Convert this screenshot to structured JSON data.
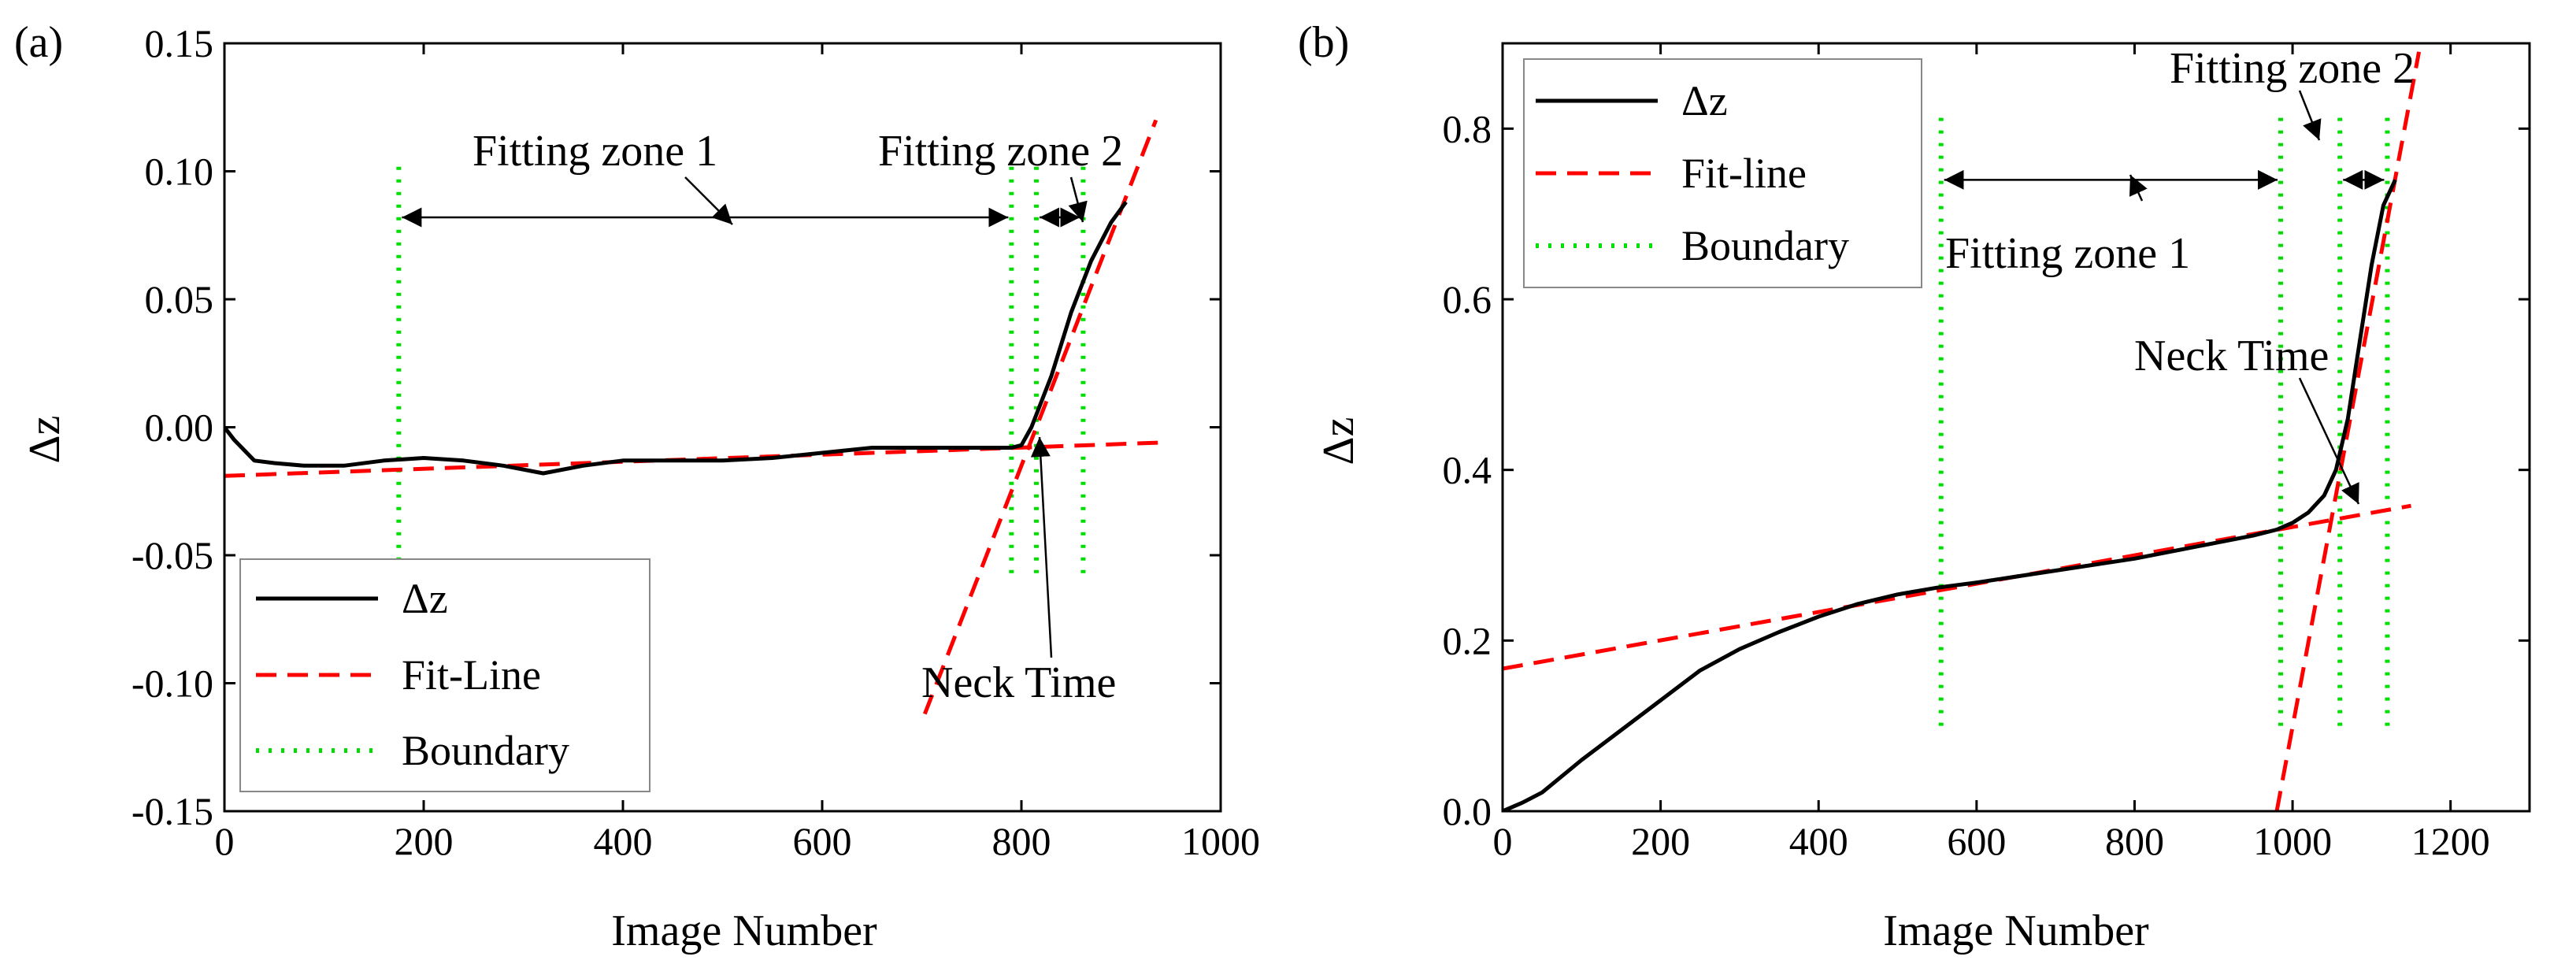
{
  "chart_data": [
    {
      "type": "line",
      "panel_label": "(a)",
      "xlabel": "Image Number",
      "ylabel": "Δz",
      "xlim": [
        0,
        1000
      ],
      "ylim": [
        -0.15,
        0.15
      ],
      "x_ticks": [
        0,
        200,
        400,
        600,
        800,
        1000
      ],
      "y_ticks": [
        -0.15,
        -0.1,
        -0.05,
        0.0,
        0.05,
        0.1,
        0.15
      ],
      "x_tick_labels": [
        "0",
        "200",
        "400",
        "600",
        "800",
        "1000"
      ],
      "y_tick_labels": [
        "-0.15",
        "-0.10",
        "-0.05",
        "0.00",
        "0.05",
        "0.10",
        "0.15"
      ],
      "legend_position": "bottom-left",
      "legend": [
        "Δz",
        "Fit-Line",
        "Boundary"
      ],
      "series": [
        {
          "name": "Δz",
          "style": "solid",
          "color": "#000000",
          "x": [
            0,
            10,
            30,
            50,
            80,
            120,
            160,
            200,
            240,
            280,
            320,
            360,
            400,
            450,
            500,
            550,
            600,
            650,
            700,
            750,
            790,
            800,
            810,
            830,
            850,
            870,
            890,
            905
          ],
          "y": [
            0.0,
            -0.005,
            -0.013,
            -0.014,
            -0.015,
            -0.015,
            -0.013,
            -0.012,
            -0.013,
            -0.015,
            -0.018,
            -0.015,
            -0.013,
            -0.013,
            -0.013,
            -0.012,
            -0.01,
            -0.008,
            -0.008,
            -0.008,
            -0.008,
            -0.007,
            0.0,
            0.02,
            0.045,
            0.065,
            0.08,
            0.088
          ]
        },
        {
          "name": "Fit-Line",
          "style": "dashed",
          "color": "#ff0000",
          "segments": [
            {
              "x": [
                0,
                940
              ],
              "y": [
                -0.019,
                -0.006
              ]
            },
            {
              "x": [
                703,
                935
              ],
              "y": [
                -0.112,
                0.12
              ]
            }
          ]
        },
        {
          "name": "Boundary",
          "style": "dotted",
          "color": "#00dd00",
          "vertical_x": [
            175,
            790,
            815,
            862
          ],
          "y_range": [
            -0.057,
            0.103
          ]
        }
      ],
      "annotations": [
        {
          "text": "Fitting zone 1",
          "x": 430,
          "y": 0.112
        },
        {
          "text": "Fitting zone 2",
          "x": 800,
          "y": 0.112
        },
        {
          "text": "Neck Time",
          "x": 780,
          "y": -0.105
        }
      ],
      "zone_arrows": [
        {
          "x1": 175,
          "x2": 790,
          "y": 0.082
        },
        {
          "x1": 815,
          "x2": 862,
          "y": 0.082
        }
      ]
    },
    {
      "type": "line",
      "panel_label": "(b)",
      "xlabel": "Image Number",
      "ylabel": "Δz",
      "xlim": [
        0,
        1300
      ],
      "ylim": [
        0,
        0.9
      ],
      "x_ticks": [
        0,
        200,
        400,
        600,
        800,
        1000,
        1200
      ],
      "y_ticks": [
        0,
        0.2,
        0.4,
        0.6,
        0.8
      ],
      "x_tick_labels": [
        "0",
        "200",
        "400",
        "600",
        "800",
        "1000",
        "1200"
      ],
      "y_tick_labels": [
        "0.0",
        "0.2",
        "0.4",
        "0.6",
        "0.8"
      ],
      "legend_position": "top-left",
      "legend": [
        "Δz",
        "Fit-line",
        "Boundary"
      ],
      "series": [
        {
          "name": "Δz",
          "style": "solid",
          "color": "#000000",
          "x": [
            0,
            25,
            50,
            100,
            150,
            200,
            250,
            300,
            350,
            400,
            450,
            500,
            550,
            600,
            650,
            700,
            750,
            800,
            850,
            900,
            950,
            980,
            1000,
            1020,
            1040,
            1055,
            1070,
            1085,
            1100,
            1115,
            1130
          ],
          "y": [
            0.0,
            0.01,
            0.022,
            0.06,
            0.095,
            0.13,
            0.165,
            0.19,
            0.21,
            0.228,
            0.243,
            0.254,
            0.262,
            0.268,
            0.275,
            0.282,
            0.289,
            0.296,
            0.305,
            0.314,
            0.323,
            0.33,
            0.338,
            0.35,
            0.37,
            0.4,
            0.46,
            0.55,
            0.64,
            0.71,
            0.74
          ]
        },
        {
          "name": "Fit-line",
          "style": "dashed",
          "color": "#ff0000",
          "segments": [
            {
              "x": [
                0,
                1150
              ],
              "y": [
                0.167,
                0.358
              ]
            },
            {
              "x": [
                980,
                1160
              ],
              "y": [
                0.0,
                0.89
              ]
            }
          ]
        },
        {
          "name": "Boundary",
          "style": "dotted",
          "color": "#00dd00",
          "vertical_x": [
            555,
            985,
            1060,
            1120
          ],
          "y_range": [
            0.1,
            0.82
          ]
        }
      ],
      "annotations": [
        {
          "text": "Fitting zone 2",
          "x": 1120,
          "y": 0.855
        },
        {
          "text": "Fitting zone 1",
          "x": 770,
          "y": 0.655
        },
        {
          "text": "Neck Time",
          "x": 1160,
          "y": 0.575
        }
      ],
      "zone_arrows": [
        {
          "x1": 555,
          "x2": 985,
          "y": 0.74
        },
        {
          "x1": 1060,
          "x2": 1120,
          "y": 0.74
        }
      ]
    }
  ]
}
